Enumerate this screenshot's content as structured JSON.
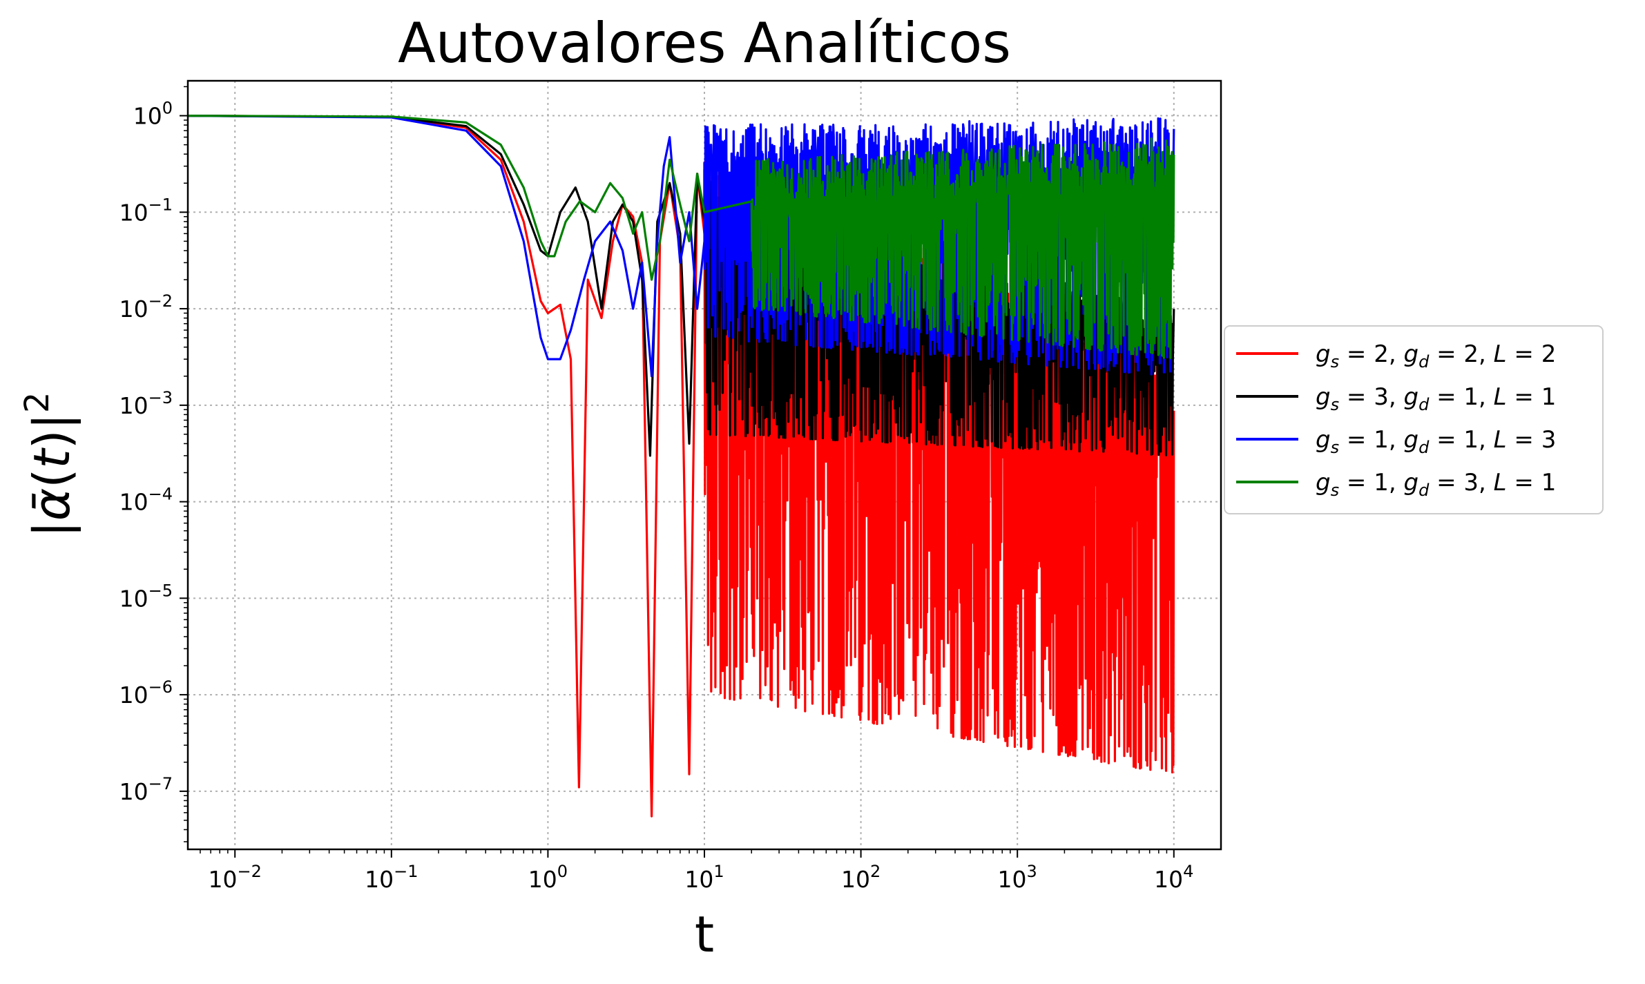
{
  "chart_data": {
    "type": "line",
    "title": "Autovalores Analíticos",
    "xlabel": "t",
    "ylabel_parts": {
      "open": "|",
      "symbol": "ᾱ",
      "paren_open": "(",
      "var": "t",
      "paren_close": ")",
      "close": "|",
      "power": "2"
    },
    "x_scale": "log",
    "y_scale": "log",
    "xlim": [
      0.005,
      20000
    ],
    "ylim": [
      2.5e-08,
      2.3
    ],
    "grid": true,
    "legend_position": "outside-right",
    "x_ticks": [
      {
        "value": 0.01,
        "base": "10",
        "exp": "−2"
      },
      {
        "value": 0.1,
        "base": "10",
        "exp": "−1"
      },
      {
        "value": 1,
        "base": "10",
        "exp": "0"
      },
      {
        "value": 10,
        "base": "10",
        "exp": "1"
      },
      {
        "value": 100,
        "base": "10",
        "exp": "2"
      },
      {
        "value": 1000,
        "base": "10",
        "exp": "3"
      },
      {
        "value": 10000,
        "base": "10",
        "exp": "4"
      }
    ],
    "y_ticks": [
      {
        "value": 1,
        "base": "10",
        "exp": "0"
      },
      {
        "value": 0.1,
        "base": "10",
        "exp": "−1"
      },
      {
        "value": 0.01,
        "base": "10",
        "exp": "−2"
      },
      {
        "value": 0.001,
        "base": "10",
        "exp": "−3"
      },
      {
        "value": 0.0001,
        "base": "10",
        "exp": "−4"
      },
      {
        "value": 1e-05,
        "base": "10",
        "exp": "−5"
      },
      {
        "value": 1e-06,
        "base": "10",
        "exp": "−6"
      },
      {
        "value": 1e-07,
        "base": "10",
        "exp": "−7"
      }
    ],
    "series": [
      {
        "name": "g_s = 2, g_d = 2, L = 2",
        "legend": {
          "gs": "2",
          "gd": "2",
          "L": "2"
        },
        "color": "#ff0000",
        "x": [
          0.005,
          0.1,
          0.3,
          0.5,
          0.7,
          0.9,
          1.0,
          1.2,
          1.4,
          1.58,
          1.8,
          2.2,
          2.6,
          3.0,
          3.5,
          4.0,
          4.6,
          5.2,
          6.0,
          7.0,
          8.0,
          9.0,
          10.0
        ],
        "y": [
          1.0,
          0.97,
          0.75,
          0.35,
          0.08,
          0.012,
          0.009,
          0.011,
          0.003,
          1.1e-07,
          0.02,
          0.008,
          0.05,
          0.12,
          0.09,
          0.03,
          5.5e-08,
          0.05,
          0.2,
          0.04,
          1.5e-07,
          0.25,
          0.06
        ],
        "noise_range": [
          10,
          10000
        ],
        "noise_upper": [
          0.5,
          0.003
        ],
        "noise_lower": [
          1e-06,
          1.5e-07
        ]
      },
      {
        "name": "g_s = 3, g_d = 1, L = 1",
        "legend": {
          "gs": "3",
          "gd": "1",
          "L": "1"
        },
        "color": "#000000",
        "x": [
          0.005,
          0.1,
          0.3,
          0.5,
          0.7,
          0.9,
          1.0,
          1.2,
          1.5,
          1.8,
          2.2,
          2.6,
          3.0,
          3.5,
          4.0,
          4.5,
          5.0,
          6.0,
          7.0,
          8.0,
          9.0,
          10.0
        ],
        "y": [
          1.0,
          0.97,
          0.78,
          0.4,
          0.12,
          0.04,
          0.035,
          0.1,
          0.18,
          0.08,
          0.01,
          0.08,
          0.12,
          0.08,
          0.02,
          0.0003,
          0.08,
          0.2,
          0.06,
          0.0004,
          0.25,
          0.08
        ],
        "noise_range": [
          10,
          10000
        ],
        "noise_upper": [
          0.3,
          0.01
        ],
        "noise_lower": [
          0.0005,
          0.0003
        ]
      },
      {
        "name": "g_s = 1, g_d = 1, L = 3",
        "legend": {
          "gs": "1",
          "gd": "1",
          "L": "3"
        },
        "color": "#0000ff",
        "x": [
          0.005,
          0.1,
          0.3,
          0.5,
          0.7,
          0.9,
          1.0,
          1.2,
          1.4,
          1.7,
          2.0,
          2.5,
          3.0,
          3.5,
          4.0,
          4.6,
          5.0,
          5.5,
          6.0,
          7.0,
          8.0,
          9.0,
          10.0
        ],
        "y": [
          1.0,
          0.96,
          0.7,
          0.3,
          0.05,
          0.005,
          0.003,
          0.003,
          0.006,
          0.02,
          0.05,
          0.08,
          0.04,
          0.01,
          0.03,
          0.002,
          0.05,
          0.3,
          0.6,
          0.03,
          0.1,
          0.01,
          0.05
        ],
        "noise_range": [
          10,
          10000
        ],
        "noise_upper": [
          0.8,
          0.95
        ],
        "noise_lower": [
          0.005,
          0.002
        ]
      },
      {
        "name": "g_s = 1, g_d = 3, L = 1",
        "legend": {
          "gs": "1",
          "gd": "3",
          "L": "1"
        },
        "color": "#008000",
        "x": [
          0.005,
          0.1,
          0.3,
          0.5,
          0.7,
          0.9,
          1.0,
          1.1,
          1.3,
          1.6,
          2.0,
          2.5,
          3.0,
          3.5,
          4.0,
          4.6,
          5.2,
          6.0,
          7.0,
          8.0,
          9.0,
          10.0
        ],
        "y": [
          1.0,
          0.98,
          0.85,
          0.5,
          0.18,
          0.05,
          0.035,
          0.035,
          0.08,
          0.13,
          0.1,
          0.2,
          0.14,
          0.06,
          0.1,
          0.02,
          0.05,
          0.35,
          0.12,
          0.05,
          0.25,
          0.1
        ],
        "noise_range": [
          20,
          10000
        ],
        "noise_upper": [
          0.35,
          0.6
        ],
        "noise_lower": [
          0.01,
          0.003
        ]
      }
    ]
  }
}
